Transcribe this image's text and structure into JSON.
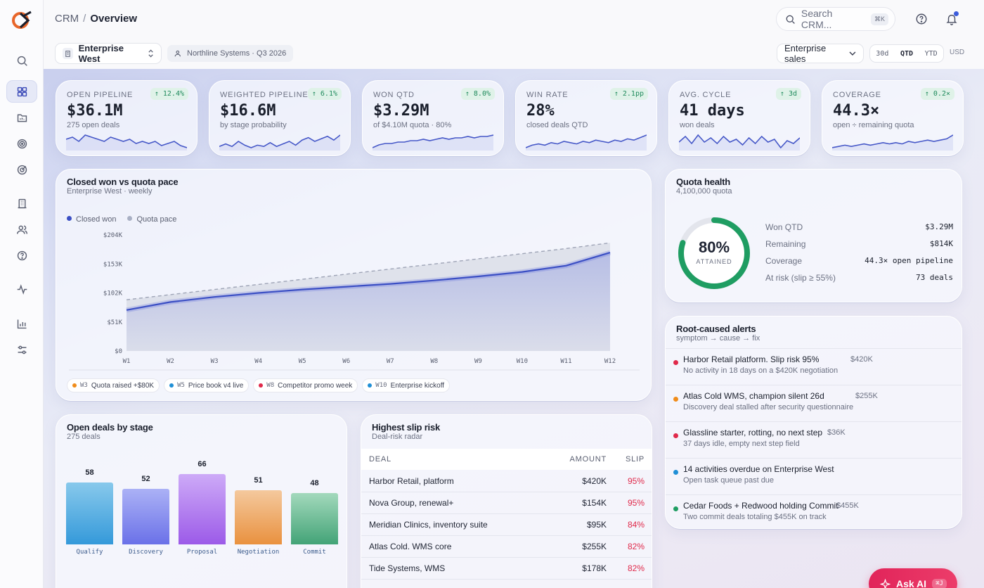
{
  "header": {
    "crumb_root": "CRM",
    "crumb_sep": "/",
    "crumb_current": "Overview",
    "search_placeholder": "Search CRM...",
    "search_kbd": "⌘K"
  },
  "filters": {
    "segment": "Enterprise West",
    "company": "Northline Systems · Q3 2026",
    "view": "Enterprise sales",
    "ranges": [
      "30d",
      "QTD",
      "YTD"
    ],
    "range_selected": "QTD",
    "currency": "USD"
  },
  "kpis": [
    {
      "label": "OPEN PIPELINE",
      "delta": "↑ 12.4%",
      "value": "$36.1M",
      "sub": "275 open deals",
      "spark": [
        8,
        9,
        7,
        10,
        9,
        8,
        7,
        9,
        8,
        7,
        8,
        6,
        7,
        6,
        7,
        5,
        6,
        7,
        5,
        4
      ]
    },
    {
      "label": "WEIGHTED PIPELINE",
      "delta": "↑ 6.1%",
      "value": "$16.6M",
      "sub": "by stage probability",
      "spark": [
        5,
        7,
        5,
        9,
        6,
        4,
        6,
        5,
        8,
        5,
        7,
        9,
        6,
        10,
        12,
        9,
        11,
        13,
        10,
        14
      ]
    },
    {
      "label": "WON QTD",
      "delta": "↑ 8.0%",
      "value": "$3.29M",
      "sub": "of $4.10M quota · 80%",
      "spark": [
        3,
        5,
        6,
        6,
        7,
        7,
        8,
        8,
        9,
        8,
        9,
        10,
        9,
        10,
        10,
        11,
        10,
        11,
        11,
        12
      ]
    },
    {
      "label": "WIN RATE",
      "delta": "↑ 2.1pp",
      "value": "28%",
      "sub": "closed deals QTD",
      "spark": [
        4,
        6,
        7,
        6,
        8,
        7,
        9,
        8,
        7,
        9,
        8,
        10,
        9,
        8,
        10,
        9,
        11,
        10,
        12,
        14
      ]
    },
    {
      "label": "AVG. CYCLE",
      "delta": "↑ 3d",
      "value": "41 days",
      "sub": "won deals",
      "spark": [
        9,
        13,
        8,
        14,
        9,
        12,
        8,
        13,
        9,
        11,
        7,
        12,
        8,
        13,
        9,
        11,
        5,
        10,
        8,
        12
      ]
    },
    {
      "label": "COVERAGE",
      "delta": "↑ 0.2×",
      "value": "44.3×",
      "sub": "open ÷ remaining quota",
      "spark": [
        5,
        6,
        7,
        6,
        7,
        8,
        7,
        8,
        9,
        8,
        9,
        8,
        10,
        9,
        10,
        11,
        10,
        11,
        12,
        15
      ]
    }
  ],
  "closed_chart": {
    "title": "Closed won vs quota pace",
    "subtitle": "Enterprise West · weekly",
    "legend": [
      {
        "name": "Closed won",
        "color": "#3b4fc4"
      },
      {
        "name": "Quota pace",
        "color": "#a9b0c4"
      }
    ],
    "annotations": [
      {
        "week": "W3",
        "text": "Quota raised +$80K",
        "color": "#f08c1a"
      },
      {
        "week": "W5",
        "text": "Price book v4 live",
        "color": "#1f8fd6"
      },
      {
        "week": "W8",
        "text": "Competitor promo week",
        "color": "#e0294a"
      },
      {
        "week": "W10",
        "text": "Enterprise kickoff",
        "color": "#1f8fd6"
      }
    ]
  },
  "chart_data": {
    "type": "line",
    "title": "Closed won vs quota pace",
    "subtitle": "Enterprise West · weekly",
    "x": [
      "W1",
      "W2",
      "W3",
      "W4",
      "W5",
      "W6",
      "W7",
      "W8",
      "W9",
      "W10",
      "W11",
      "W12"
    ],
    "y_ticks": [
      "$0",
      "$51K",
      "$102K",
      "$153K",
      "$204K"
    ],
    "ylim": [
      0,
      204000
    ],
    "series": [
      {
        "name": "Closed won",
        "values": [
          72000,
          86000,
          95000,
          102000,
          108000,
          113000,
          118000,
          124000,
          131000,
          139000,
          150000,
          173000
        ]
      },
      {
        "name": "Quota pace",
        "values": [
          90000,
          99000,
          108000,
          117000,
          126000,
          135000,
          144000,
          153000,
          162000,
          171000,
          180000,
          190000
        ]
      }
    ],
    "legend": "top-left",
    "grid": false
  },
  "quota": {
    "title": "Quota health",
    "subtitle": "4,100,000 quota",
    "pct": "80%",
    "pct_value": 0.8,
    "attained_label": "ATTAINED",
    "rows": [
      {
        "k": "Won QTD",
        "v": "$3.29M"
      },
      {
        "k": "Remaining",
        "v": "$814K"
      },
      {
        "k": "Coverage",
        "v": "44.3× open pipeline"
      },
      {
        "k": "At risk (slip ≥ 55%)",
        "v": "73 deals"
      }
    ]
  },
  "alerts": {
    "title": "Root-caused alerts",
    "subtitle": "symptom → cause → fix",
    "items": [
      {
        "title": "Harbor Retail platform. Slip risk 95%",
        "amount": "$420K",
        "sub": "No activity in 18 days on a $420K negotiation",
        "color": "#e0294a"
      },
      {
        "title": "Atlas Cold WMS, champion silent 26d",
        "amount": "$255K",
        "sub": "Discovery deal stalled after security questionnaire",
        "color": "#f08c1a"
      },
      {
        "title": "Glassline starter, rotting, no next step",
        "amount": "$36K",
        "sub": "37 days idle, empty next step field",
        "color": "#e0294a"
      },
      {
        "title": "14 activities overdue on Enterprise West",
        "amount": "",
        "sub": "Open task queue past due",
        "color": "#1f8fd6"
      },
      {
        "title": "Cedar Foods + Redwood holding Commit",
        "amount": "$455K",
        "sub": "Two commit deals totaling $455K on track",
        "color": "#1f9d62"
      }
    ]
  },
  "stages": {
    "title": "Open deals by stage",
    "subtitle": "275 deals",
    "items": [
      {
        "name": "Qualify",
        "count": "58",
        "value": 58,
        "color_top": "#7cc4ea",
        "color_bot": "#1f8fd6"
      },
      {
        "name": "Discovery",
        "count": "52",
        "value": 52,
        "color_top": "#a3aaf5",
        "color_bot": "#5b62e6"
      },
      {
        "name": "Proposal",
        "count": "66",
        "value": 66,
        "color_top": "#c9a2f7",
        "color_bot": "#9249e6"
      },
      {
        "name": "Negotiation",
        "count": "51",
        "value": 51,
        "color_top": "#f4c493",
        "color_bot": "#e8862a"
      },
      {
        "name": "Commit",
        "count": "48",
        "value": 48,
        "color_top": "#9ad6b5",
        "color_bot": "#2f9a68"
      }
    ]
  },
  "slip": {
    "title": "Highest slip risk",
    "subtitle": "Deal-risk radar",
    "col_deal": "DEAL",
    "col_amount": "AMOUNT",
    "col_slip": "SLIP",
    "rows": [
      {
        "deal": "Harbor Retail, platform",
        "amount": "$420K",
        "slip": "95%"
      },
      {
        "deal": "Nova Group, renewal+",
        "amount": "$154K",
        "slip": "95%"
      },
      {
        "deal": "Meridian Clinics, inventory suite",
        "amount": "$95K",
        "slip": "84%"
      },
      {
        "deal": "Atlas Cold. WMS core",
        "amount": "$255K",
        "slip": "82%"
      },
      {
        "deal": "Tide Systems, WMS",
        "amount": "$178K",
        "slip": "82%"
      }
    ]
  },
  "ask_ai": {
    "label": "Ask AI",
    "kbd": "⌘J"
  }
}
